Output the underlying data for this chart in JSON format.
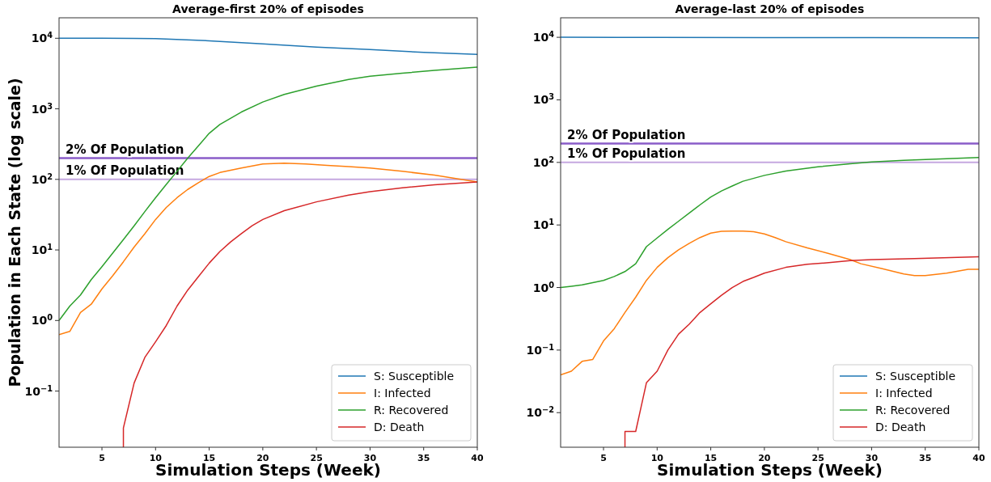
{
  "chart_data": [
    {
      "type": "line",
      "title": "Average-first 20% of episodes",
      "xlabel": "Simulation Steps (Week)",
      "ylabel": "Population in Each State (log scale)",
      "log": true,
      "legend": "bottom right",
      "xlim": [
        1,
        40
      ],
      "xticks": [
        5,
        10,
        15,
        20,
        25,
        30,
        35,
        40
      ],
      "ylim": [
        0.016,
        19500
      ],
      "yticks": [
        {
          "value": 0.1,
          "label": "10$^{−1}$"
        },
        {
          "value": 1,
          "label": "10$^{0}$"
        },
        {
          "value": 10,
          "label": "10$^{1}$"
        },
        {
          "value": 100,
          "label": "10$^{2}$"
        },
        {
          "value": 1000,
          "label": "10$^{3}$"
        },
        {
          "value": 10000,
          "label": "10$^{4}$"
        }
      ],
      "ref_lines": [
        {
          "axis": "y",
          "value": 200,
          "label": "2% Of Population",
          "color": "#8a5cc8"
        },
        {
          "axis": "y",
          "value": 100,
          "label": "1% Of Population",
          "color": "#c5a8e0"
        }
      ],
      "series": [
        {
          "name": "S: Susceptible",
          "color": "#1f77b4",
          "x": [
            1,
            5,
            8,
            10,
            15,
            20,
            25,
            30,
            35,
            40
          ],
          "values": [
            10000,
            10000,
            9950,
            9900,
            9200,
            8300,
            7500,
            6900,
            6300,
            5900
          ]
        },
        {
          "name": "I: Infected",
          "color": "#ff7f0e",
          "x": [
            1,
            2,
            3,
            4,
            5,
            6,
            7,
            8,
            9,
            10,
            11,
            12,
            13,
            14,
            15,
            16,
            18,
            20,
            22,
            24,
            26,
            28,
            30,
            33,
            36,
            40
          ],
          "values": [
            0.63,
            0.7,
            1.3,
            1.7,
            2.8,
            4.3,
            6.8,
            11,
            17,
            27,
            40,
            55,
            72,
            90,
            110,
            125,
            145,
            165,
            170,
            165,
            158,
            152,
            145,
            130,
            115,
            92
          ]
        },
        {
          "name": "R: Recovered",
          "color": "#2ca02c",
          "x": [
            1,
            2,
            3,
            4,
            5,
            6,
            7,
            8,
            9,
            10,
            11,
            12,
            13,
            14,
            15,
            16,
            18,
            20,
            22,
            25,
            28,
            30,
            33,
            36,
            40
          ],
          "values": [
            1,
            1.6,
            2.3,
            3.8,
            5.8,
            9,
            14,
            22,
            35,
            55,
            85,
            130,
            200,
            300,
            450,
            600,
            900,
            1250,
            1600,
            2100,
            2600,
            2900,
            3200,
            3500,
            3900
          ]
        },
        {
          "name": "D: Death",
          "color": "#d62728",
          "x": [
            7,
            7,
            8,
            9,
            10,
            11,
            12,
            13,
            14,
            15,
            16,
            17,
            18,
            19,
            20,
            22,
            25,
            28,
            30,
            33,
            36,
            40
          ],
          "values": [
            0.016,
            0.03,
            0.13,
            0.3,
            0.5,
            0.85,
            1.6,
            2.7,
            4.2,
            6.5,
            9.5,
            13,
            17,
            22,
            27,
            36,
            48,
            60,
            67,
            76,
            84,
            92
          ]
        }
      ]
    },
    {
      "type": "line",
      "title": "Average-last 20% of episodes",
      "xlabel": "Simulation Steps (Week)",
      "log": true,
      "legend": "bottom right",
      "xlim": [
        1,
        40
      ],
      "xticks": [
        5,
        10,
        15,
        20,
        25,
        30,
        35,
        40
      ],
      "ylim": [
        0.0028,
        20500
      ],
      "yticks": [
        {
          "value": 0.01,
          "label": "10$^{−2}$"
        },
        {
          "value": 0.1,
          "label": "10$^{−1}$"
        },
        {
          "value": 1,
          "label": "10$^{0}$"
        },
        {
          "value": 10,
          "label": "10$^{1}$"
        },
        {
          "value": 100,
          "label": "10$^{2}$"
        },
        {
          "value": 1000,
          "label": "10$^{3}$"
        },
        {
          "value": 10000,
          "label": "10$^{4}$"
        }
      ],
      "ref_lines": [
        {
          "axis": "y",
          "value": 200,
          "label": "2% Of Population",
          "color": "#8a5cc8"
        },
        {
          "axis": "y",
          "value": 100,
          "label": "1% Of Population",
          "color": "#c5a8e0"
        }
      ],
      "series": [
        {
          "name": "S: Susceptible",
          "color": "#1f77b4",
          "x": [
            1,
            10,
            20,
            30,
            40
          ],
          "values": [
            10000,
            9950,
            9900,
            9850,
            9800
          ]
        },
        {
          "name": "I: Infected",
          "color": "#ff7f0e",
          "x": [
            1,
            2,
            3,
            4,
            5,
            6,
            7,
            8,
            9,
            10,
            11,
            12,
            13,
            14,
            15,
            16,
            17,
            18,
            19,
            20,
            21,
            22,
            24,
            26,
            28,
            29,
            31,
            33,
            34,
            35,
            37,
            39,
            40
          ],
          "values": [
            0.04,
            0.046,
            0.066,
            0.071,
            0.14,
            0.22,
            0.4,
            0.7,
            1.3,
            2.1,
            3,
            4,
            5.1,
            6.3,
            7.4,
            7.9,
            8,
            8,
            7.8,
            7.2,
            6.3,
            5.4,
            4.3,
            3.5,
            2.8,
            2.4,
            2,
            1.65,
            1.55,
            1.55,
            1.7,
            1.95,
            1.95
          ]
        },
        {
          "name": "R: Recovered",
          "color": "#2ca02c",
          "x": [
            1,
            2,
            3,
            4,
            5,
            6,
            7,
            8,
            9,
            10,
            11,
            12,
            13,
            14,
            15,
            16,
            17,
            18,
            20,
            22,
            25,
            28,
            30,
            33,
            36,
            40
          ],
          "values": [
            1,
            1.05,
            1.1,
            1.2,
            1.3,
            1.5,
            1.8,
            2.4,
            4.5,
            6.2,
            8.5,
            11.5,
            15.5,
            21,
            28,
            35,
            42,
            50,
            62,
            73,
            85,
            95,
            102,
            108,
            113,
            120
          ]
        },
        {
          "name": "D: Death",
          "color": "#d62728",
          "x": [
            7,
            7,
            8,
            9,
            10,
            11,
            12,
            13,
            14,
            15,
            16,
            17,
            18,
            19,
            20,
            22,
            24,
            26,
            28,
            30,
            34,
            40
          ],
          "values": [
            0.0028,
            0.005,
            0.005,
            0.03,
            0.046,
            0.1,
            0.18,
            0.26,
            0.4,
            0.55,
            0.75,
            1,
            1.25,
            1.45,
            1.7,
            2.1,
            2.35,
            2.5,
            2.7,
            2.8,
            2.9,
            3.1
          ]
        }
      ]
    }
  ]
}
